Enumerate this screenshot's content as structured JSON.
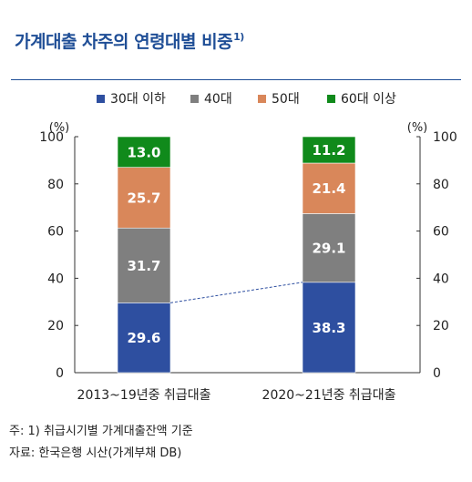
{
  "title": "가계대출 차주의 연령대별 비중",
  "title_sup": "1)",
  "chart_data": {
    "type": "bar",
    "stacked": true,
    "categories": [
      "2013~19년중 취급대출",
      "2020~21년중 취급대출"
    ],
    "series": [
      {
        "name": "30대 이하",
        "color": "#2e4fa0",
        "values": [
          29.6,
          38.3
        ]
      },
      {
        "name": "40대",
        "color": "#7f7f7f",
        "values": [
          31.7,
          29.1
        ]
      },
      {
        "name": "50대",
        "color": "#d9875a",
        "values": [
          25.7,
          21.4
        ]
      },
      {
        "name": "60대 이상",
        "color": "#108a1b",
        "values": [
          13.0,
          11.2
        ]
      }
    ],
    "value_labels": [
      [
        "29.6",
        "38.3"
      ],
      [
        "31.7",
        "29.1"
      ],
      [
        "25.7",
        "21.4"
      ],
      [
        "13.0",
        "11.2"
      ]
    ],
    "ylim": [
      0,
      100
    ],
    "yticks": [
      "0",
      "20",
      "40",
      "60",
      "80",
      "100"
    ],
    "y_unit_left": "(%)",
    "y_unit_right": "(%)",
    "connector": "dashed line linking tops of 30대 이하 segments",
    "legend_position": "top",
    "grid": false
  },
  "footnotes": [
    "주: 1) 취급시기별 가계대출잔액 기준",
    "자료: 한국은행 시산(가계부채 DB)"
  ]
}
